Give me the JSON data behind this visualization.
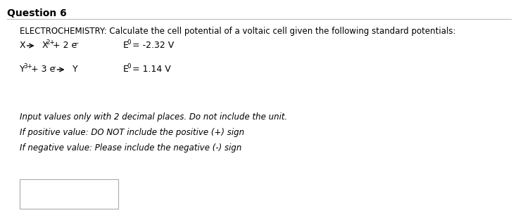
{
  "title": "Question 6",
  "title_fontsize": 10,
  "bg_color": "#ffffff",
  "header_line_color": "#888888",
  "intro_text": "ELECTROCHEMISTRY: Calculate the cell potential of a voltaic cell given the following standard potentials:",
  "intro_fontsize": 8.5,
  "italic_lines": [
    "Input values only with 2 decimal places. Do not include the unit.",
    "If positive value: DO NOT include the positive (+) sign",
    "If negative value: Please include the negative (-) sign"
  ],
  "italic_fontsize": 8.5,
  "eq_fontsize": 9.0,
  "eq_sup_fontsize": 6.3,
  "e0_fontsize": 9.0,
  "e0_sup_fontsize": 6.3
}
